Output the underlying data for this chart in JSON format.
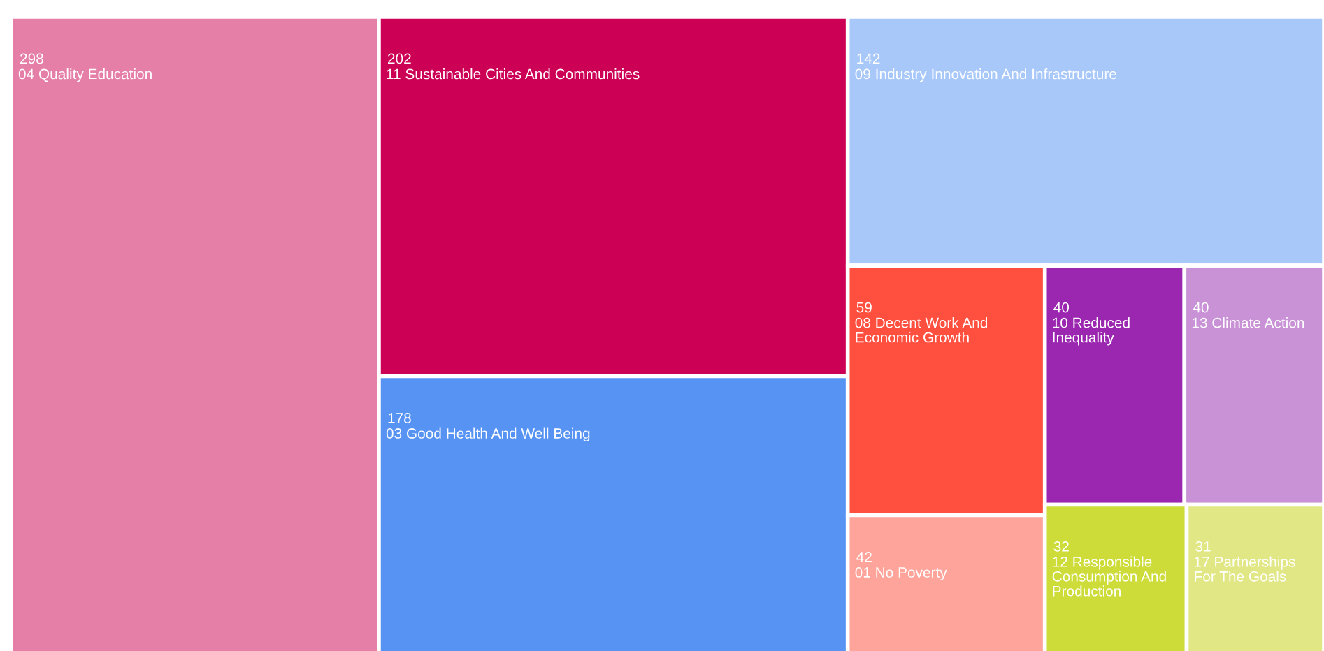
{
  "chart_data": {
    "type": "other",
    "categories": [
      "04 Quality Education",
      "11 Sustainable Cities And Communities",
      "03 Good Health And Well Being",
      "09 Industry Innovation And Infrastructure",
      "08 Decent Work And Economic Growth",
      "01 No Poverty",
      "10 Reduced Inequality",
      "13 Climate Action",
      "12 Responsible Consumption And Production",
      "17 Partnerships For The Goals"
    ],
    "values": [
      298,
      202,
      178,
      142,
      59,
      42,
      40,
      40,
      32,
      31
    ],
    "colors": [
      "#e57fa8",
      "#cc0055",
      "#5793f3",
      "#a8c8fa",
      "#ff4f3f",
      "#ffa49a",
      "#9b27b0",
      "#c991d6",
      "#cddc39",
      "#e0e784"
    ],
    "data_labels": true
  }
}
